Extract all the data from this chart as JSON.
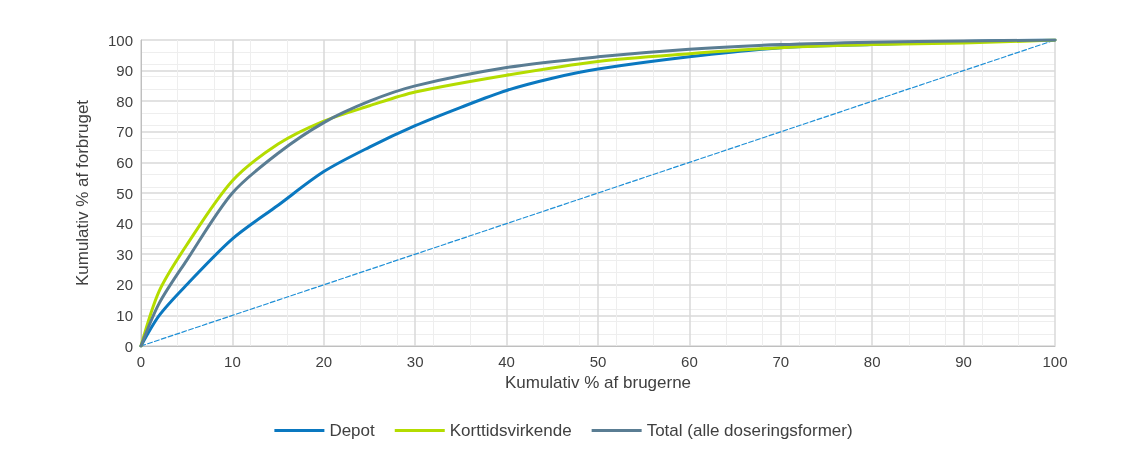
{
  "chart_data": {
    "type": "line",
    "xlabel": "Kumulativ % af brugerne",
    "ylabel": "Kumulativ % af forbruget",
    "xlim": [
      0,
      100
    ],
    "ylim": [
      0,
      100
    ],
    "xticks": [
      0,
      10,
      20,
      30,
      40,
      50,
      60,
      70,
      80,
      90,
      100
    ],
    "yticks": [
      0,
      10,
      20,
      30,
      40,
      50,
      60,
      70,
      80,
      90,
      100
    ],
    "grid": true,
    "legend": "bottom",
    "marker": "none",
    "series": [
      {
        "name": "Depot",
        "color": "#0a78c0",
        "x": [
          0,
          2,
          5,
          10,
          15,
          20,
          25,
          30,
          35,
          40,
          45,
          50,
          60,
          70,
          80,
          90,
          100
        ],
        "values": [
          0,
          10,
          20,
          35,
          46,
          57,
          65,
          72,
          78,
          83.5,
          87.5,
          90.5,
          94.5,
          97.5,
          98.5,
          99.5,
          100
        ]
      },
      {
        "name": "Korttidsvirkende",
        "color": "#b4dc00",
        "x": [
          0,
          2,
          5,
          10,
          15,
          20,
          25,
          30,
          40,
          50,
          60,
          70,
          80,
          90,
          100
        ],
        "values": [
          0,
          18,
          33,
          54,
          66,
          73.5,
          78.5,
          83,
          88.5,
          93,
          95.5,
          97.5,
          98.5,
          99,
          100
        ]
      },
      {
        "name": "Total (alle doseringsformer)",
        "color": "#5a7d93",
        "x": [
          0,
          2,
          5,
          10,
          15,
          20,
          25,
          30,
          40,
          50,
          60,
          70,
          80,
          90,
          100
        ],
        "values": [
          0,
          14,
          28,
          50,
          63,
          73,
          80,
          85,
          91,
          94.5,
          97,
          98.5,
          99.3,
          99.7,
          100
        ]
      },
      {
        "color": "#1e8fd6",
        "line_style": "dashed",
        "x": [
          0,
          100
        ],
        "values": [
          0,
          100
        ]
      }
    ]
  }
}
